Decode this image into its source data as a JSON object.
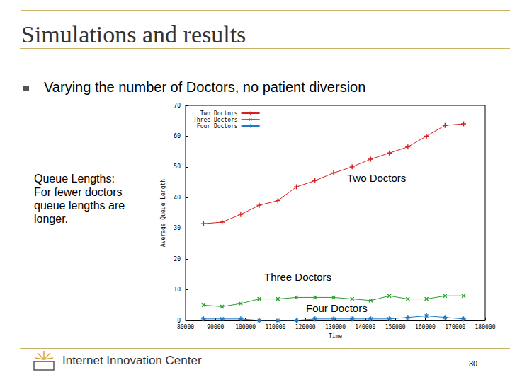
{
  "slide": {
    "title": "Simulations and results",
    "bullet": "Varying the number of Doctors, no patient diversion",
    "side_text": [
      "Queue Lengths:",
      "For fewer doctors",
      "queue lengths are",
      "longer."
    ],
    "footer": "Internet Innovation Center",
    "page": "30"
  },
  "chart_data": {
    "type": "line",
    "x_label": "Time",
    "y_label": "Average Queue Length",
    "x": [
      86000,
      92200,
      98400,
      104600,
      110800,
      117000,
      123200,
      129400,
      135600,
      141800,
      148000,
      154200,
      160400,
      166600,
      172800
    ],
    "series": [
      {
        "name": "Two Doctors",
        "color": "#d62020",
        "marker": "plus",
        "values": [
          31.5,
          32,
          34.5,
          37.5,
          39,
          43.5,
          45.5,
          48,
          50,
          52.5,
          54.5,
          56.5,
          60,
          63.5,
          64
        ]
      },
      {
        "name": "Three Doctors",
        "color": "#2ca02c",
        "marker": "cross",
        "values": [
          5,
          4.5,
          5.5,
          7,
          7,
          7.5,
          7.5,
          7.5,
          7,
          6.5,
          8,
          7,
          7,
          8,
          8
        ]
      },
      {
        "name": "Four Doctors",
        "color": "#1f77c4",
        "marker": "star",
        "values": [
          0.5,
          0.5,
          0.5,
          0,
          0,
          0,
          0.5,
          0.5,
          0.5,
          0.5,
          0.5,
          1,
          1.5,
          1,
          0.5
        ]
      }
    ],
    "xlim": [
      80000,
      180000
    ],
    "xticks": [
      80000,
      90000,
      100000,
      110000,
      120000,
      130000,
      140000,
      150000,
      160000,
      170000,
      180000
    ],
    "ylim": [
      0,
      70
    ],
    "yticks": [
      0,
      10,
      20,
      30,
      40,
      50,
      60,
      70
    ],
    "grid": false,
    "legend": "top-left",
    "annotations": [
      "Two Doctors",
      "Three Doctors",
      "Four Doctors"
    ]
  }
}
